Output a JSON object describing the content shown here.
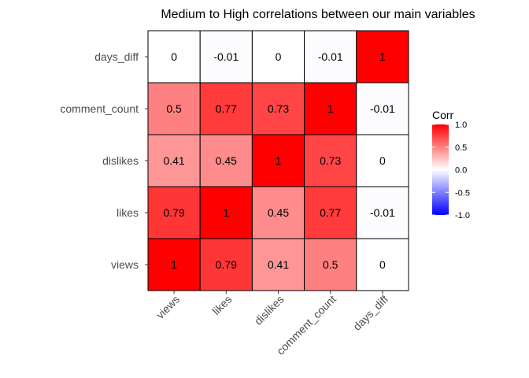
{
  "chart_data": {
    "type": "heatmap",
    "title": "Medium to High correlations between our main variables",
    "x_categories": [
      "views",
      "likes",
      "dislikes",
      "comment_count",
      "days_diff"
    ],
    "y_categories": [
      "views",
      "likes",
      "dislikes",
      "comment_count",
      "days_diff"
    ],
    "values": [
      [
        1,
        0.79,
        0.41,
        0.5,
        0
      ],
      [
        0.79,
        1,
        0.45,
        0.77,
        -0.01
      ],
      [
        0.41,
        0.45,
        1,
        0.73,
        0
      ],
      [
        0.5,
        0.77,
        0.73,
        1,
        -0.01
      ],
      [
        0,
        -0.01,
        0,
        -0.01,
        1
      ]
    ],
    "legend": {
      "title": "Corr",
      "placement": "right",
      "range": [
        -1,
        1
      ],
      "ticks": [
        "1.0",
        "0.5",
        "0.0",
        "-0.5",
        "-1.0"
      ],
      "colors": {
        "high": "#ff0000",
        "mid": "#ffffff",
        "low": "#0000ff"
      }
    },
    "x_tick_rotation": 45,
    "grid": false
  }
}
